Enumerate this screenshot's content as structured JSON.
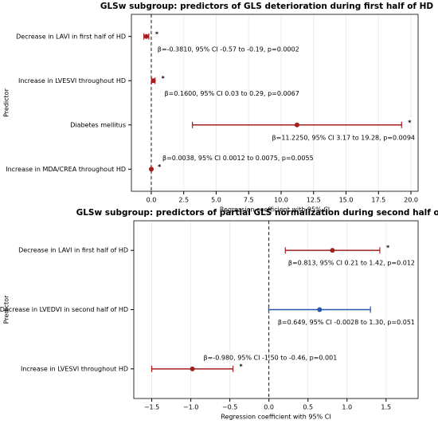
{
  "chart_data": [
    {
      "type": "forest",
      "title": "GLSw subgroup: predictors of GLS deterioration during first half of HD",
      "xlabel": "Regression coefficient with 95% CI",
      "ylabel": "Predictor",
      "categories": [
        "Decrease in LAVI in first half of HD",
        "Increase in LVESVI throughout HD",
        "Diabetes mellitus",
        "Increase in MDA/CREA throughout HD"
      ],
      "values": [
        -0.381,
        0.16,
        11.225,
        0.0038
      ],
      "ci_low": [
        -0.57,
        0.03,
        3.17,
        0.0012
      ],
      "ci_high": [
        -0.19,
        0.29,
        19.28,
        0.0075
      ],
      "colors": [
        "#a31f1f",
        "#a31f1f",
        "#a31f1f",
        "#a31f1f"
      ],
      "annotations": [
        "β=-0.3810, 95% CI -0.57 to -0.19, p=0.0002",
        "β=0.1600, 95% CI 0.03 to 0.29, p=0.0067",
        "β=11.2250, 95% CI 3.17 to 19.28, p=0.0094",
        "β=0.0038, 95% CI 0.0012 to 0.0075, p=0.0055"
      ],
      "significance": [
        "*",
        "*",
        "*",
        "*"
      ],
      "xlim": [
        -1.53,
        20.55
      ],
      "xticks": [
        {
          "value": 0,
          "label": "0.0"
        },
        2.5,
        {
          "value": 5,
          "label": "5.0"
        },
        7.5,
        {
          "value": 10,
          "label": "10.0"
        },
        12.5,
        {
          "value": 15,
          "label": "15.0"
        },
        17.5,
        {
          "value": 20,
          "label": "20.0"
        }
      ],
      "grid": true
    },
    {
      "type": "forest",
      "title": "GLSw subgroup: predictors of partial GLS normalization during second half of HD",
      "xlabel": "Regression coefficient with 95% CI",
      "ylabel": "Predictor",
      "categories": [
        "Decrease in LAVI in first half of HD",
        "Decrease in LVEDVI in second half of HD",
        "Increase in LVESVI throughout HD"
      ],
      "values": [
        0.813,
        0.649,
        -0.98
      ],
      "ci_low": [
        0.21,
        -0.0028,
        -1.5
      ],
      "ci_high": [
        1.42,
        1.3,
        -0.46
      ],
      "colors": [
        "#a31f1f",
        "#2456b0",
        "#a31f1f"
      ],
      "annotations": [
        "β=0.813, 95% CI 0.21 to 1.42, p=0.012",
        "β=0.649, 95% CI -0.0028 to 1.30, p=0.051",
        "β=-0.980, 95% CI -1.50 to -0.46, p=0.001"
      ],
      "significance": [
        "*",
        null,
        "*"
      ],
      "xlim": [
        -1.73,
        1.91
      ],
      "xticks": [
        {
          "value": -1.5,
          "label": "−1.5"
        },
        {
          "value": -1,
          "label": "−1.0"
        },
        {
          "value": -0.5,
          "label": "−0.5"
        },
        {
          "value": 0,
          "label": "0.0"
        },
        0.5,
        {
          "value": 1,
          "label": "1.0"
        },
        1.5
      ],
      "grid": true
    }
  ]
}
